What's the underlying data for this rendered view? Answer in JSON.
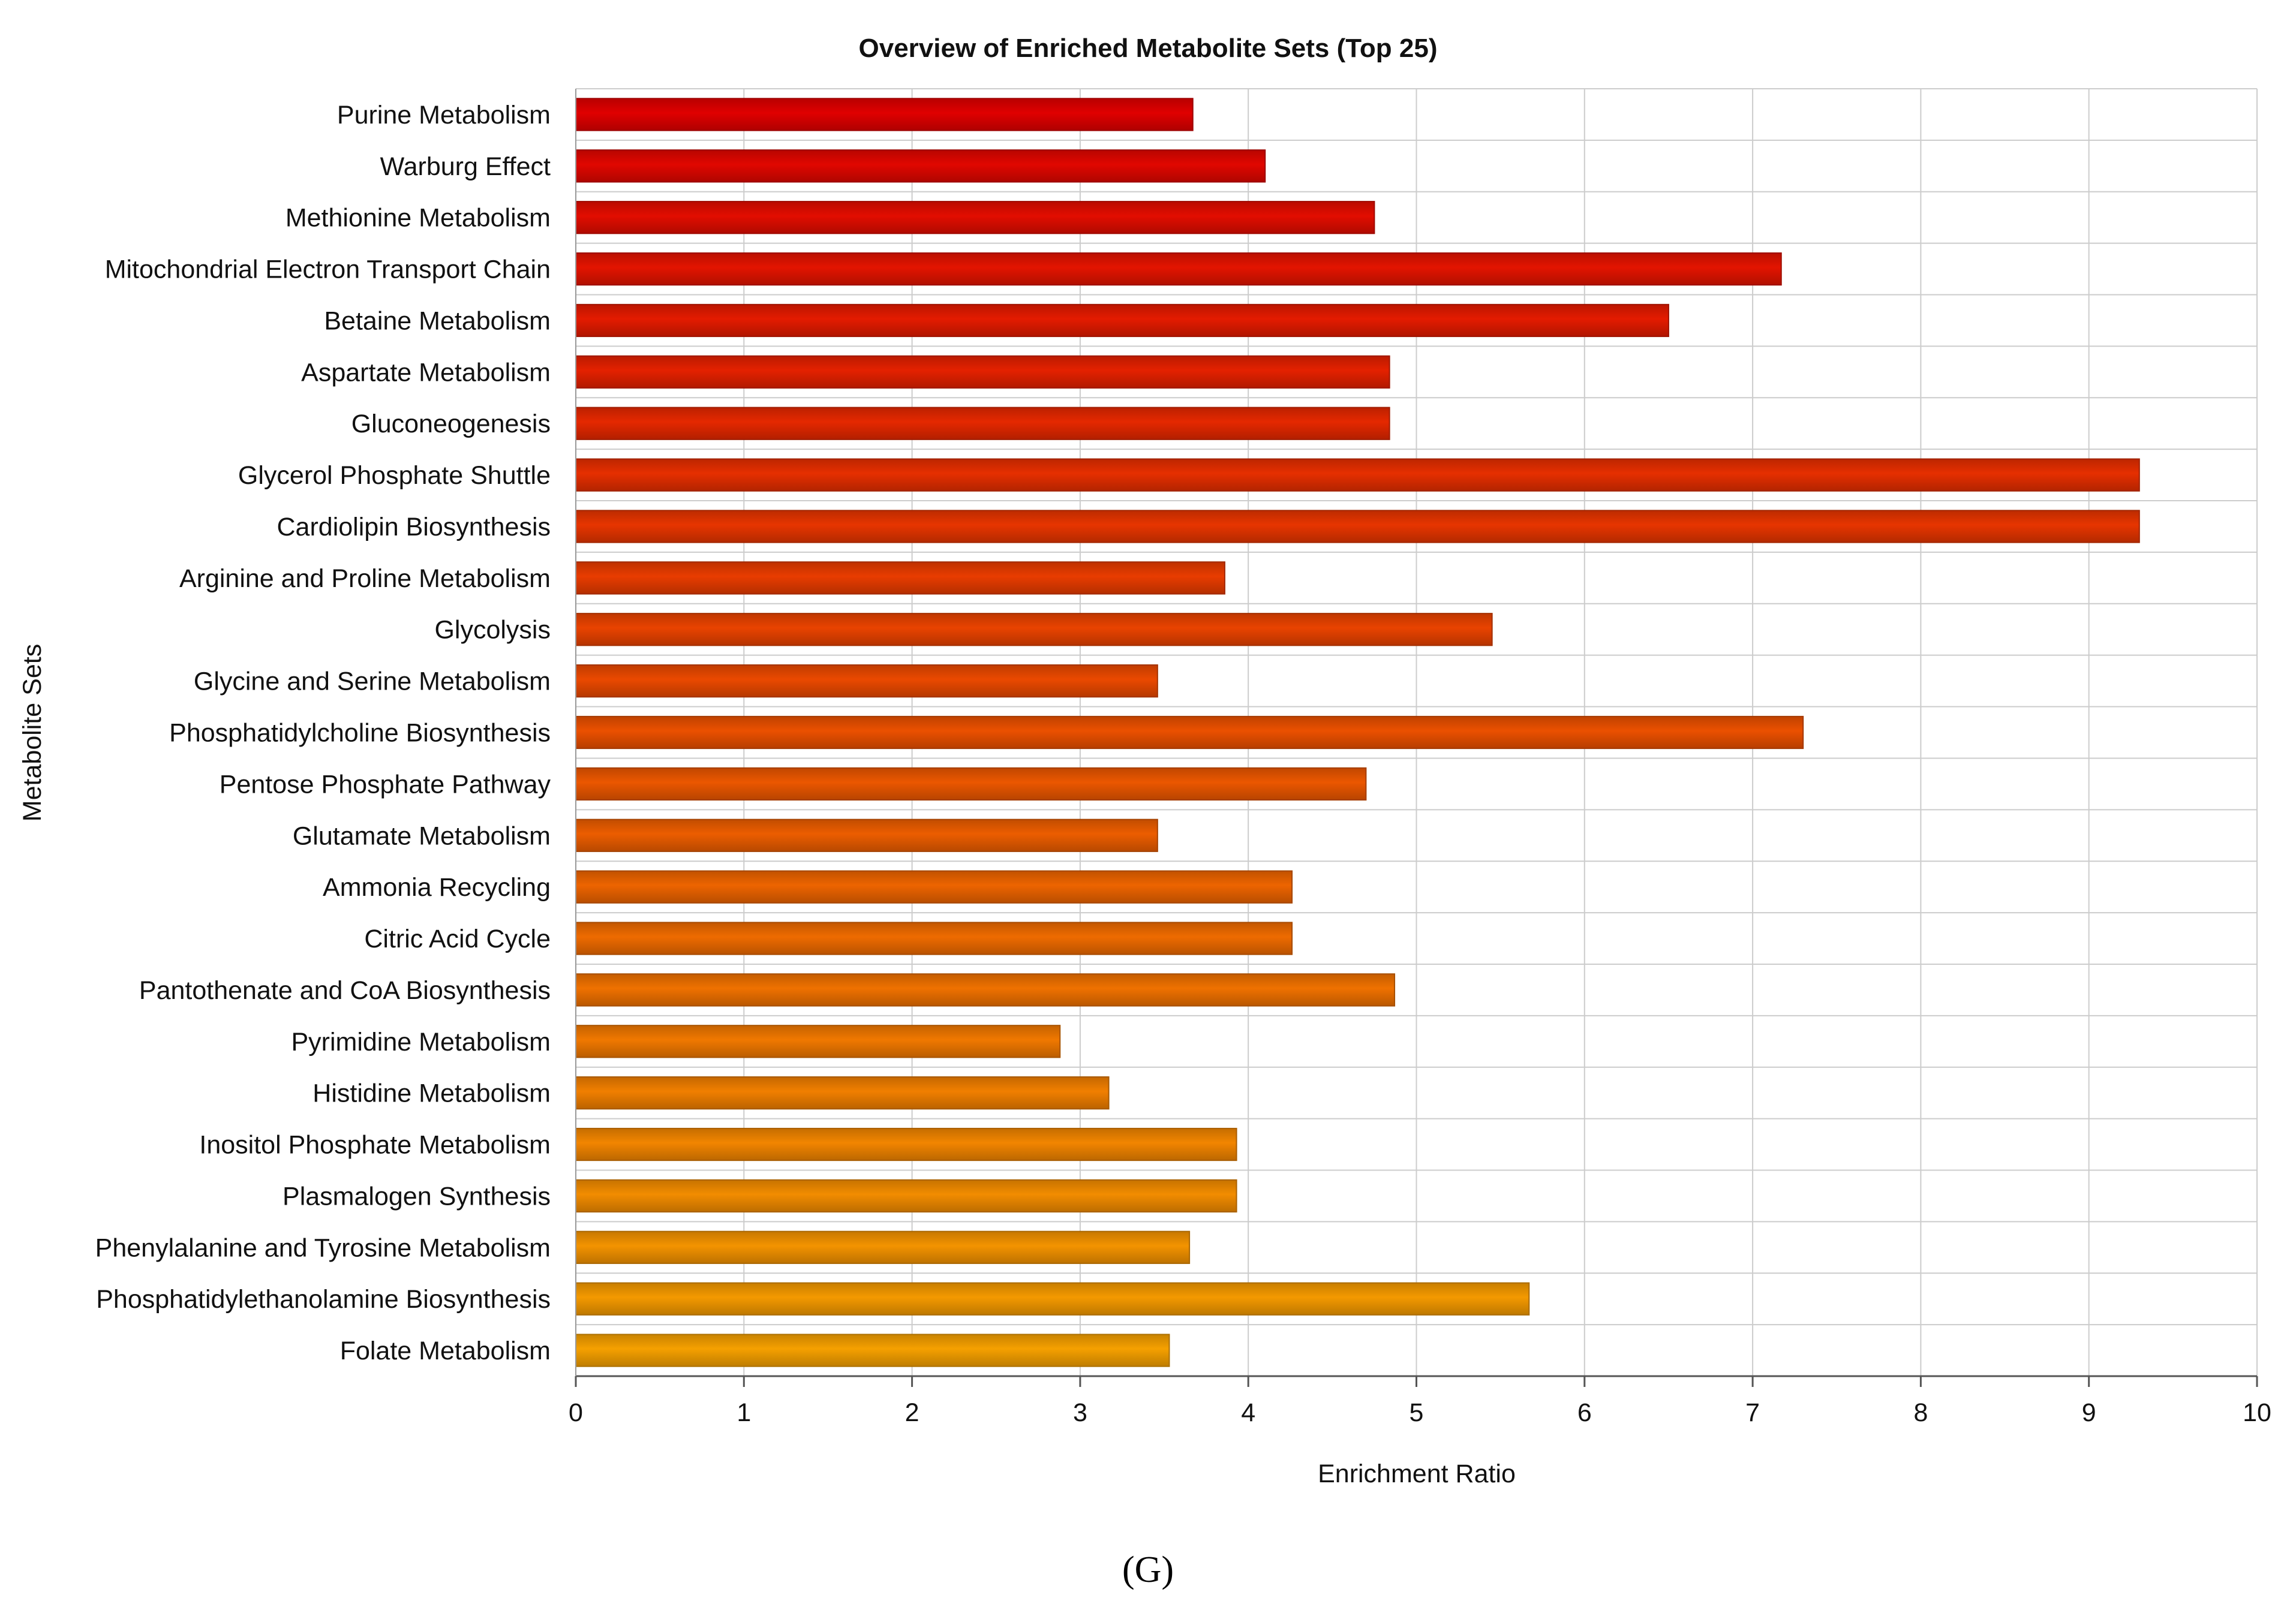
{
  "chart_data": {
    "type": "bar",
    "orientation": "horizontal",
    "title": "Overview of Enriched Metabolite Sets (Top 25)",
    "xlabel": "Enrichment Ratio",
    "ylabel": "Metabolite Sets",
    "xlim": [
      0,
      10
    ],
    "xticks": [
      "0",
      "1",
      "2",
      "3",
      "4",
      "5",
      "6",
      "7",
      "8",
      "9",
      "10"
    ],
    "grid": true,
    "categories": [
      "Purine Metabolism",
      "Warburg Effect",
      "Methionine Metabolism",
      "Mitochondrial Electron Transport Chain",
      "Betaine Metabolism",
      "Aspartate Metabolism",
      "Gluconeogenesis",
      "Glycerol Phosphate Shuttle",
      "Cardiolipin Biosynthesis",
      "Arginine and Proline Metabolism",
      "Glycolysis",
      "Glycine and Serine Metabolism",
      "Phosphatidylcholine Biosynthesis",
      "Pentose Phosphate Pathway",
      "Glutamate Metabolism",
      "Ammonia Recycling",
      "Citric Acid Cycle",
      "Pantothenate and CoA Biosynthesis",
      "Pyrimidine Metabolism",
      "Histidine Metabolism",
      "Inositol Phosphate Metabolism",
      "Plasmalogen Synthesis",
      "Phenylalanine and Tyrosine Metabolism",
      "Phosphatidylethanolamine Biosynthesis",
      "Folate Metabolism"
    ],
    "values": [
      3.67,
      4.1,
      4.75,
      7.17,
      6.5,
      4.84,
      4.84,
      9.3,
      9.3,
      3.86,
      5.45,
      3.46,
      7.3,
      4.7,
      3.46,
      4.26,
      4.26,
      4.87,
      2.88,
      3.17,
      3.93,
      3.93,
      3.65,
      5.67,
      3.53
    ],
    "color_start": "#e00000",
    "color_end": "#f5a000"
  },
  "panel_label": "(G)"
}
